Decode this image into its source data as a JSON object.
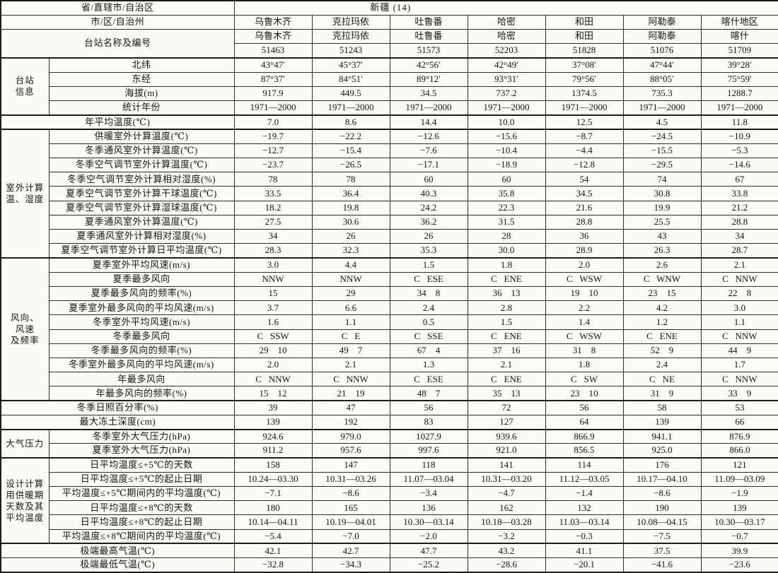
{
  "colors": {
    "paper": "#fbfaf7",
    "ink": "#1b1b18"
  },
  "table": {
    "province_label": "省/直辖市/自治区",
    "province_value": "新疆 (14)",
    "city_label": "市/区/自治州",
    "cities": [
      "乌鲁木齐",
      "克拉玛依",
      "吐鲁番",
      "哈密",
      "和田",
      "阿勒泰",
      "喀什地区"
    ],
    "station_label": "台站名称及编号",
    "station_names": [
      "乌鲁木齐",
      "克拉玛依",
      "吐鲁番",
      "哈密",
      "和田",
      "阿勒泰",
      "喀什"
    ],
    "station_codes": [
      "51463",
      "51243",
      "51573",
      "52203",
      "51828",
      "51076",
      "51709"
    ],
    "sections": [
      {
        "id": "station-info",
        "group_lines": [
          "台站",
          "信息"
        ],
        "rows": [
          {
            "label": "北纬",
            "values": [
              "43°47′",
              "45°37′",
              "42°56′",
              "42°49′",
              "37°08′",
              "47°44′",
              "39°28′"
            ]
          },
          {
            "label": "东经",
            "values": [
              "87°37′",
              "84°51′",
              "89°12′",
              "93°31′",
              "79°56′",
              "88°05′",
              "75°59′"
            ]
          },
          {
            "label": "海拔(m)",
            "values": [
              "917.9",
              "449.5",
              "34.5",
              "737.2",
              "1374.5",
              "735.3",
              "1288.7"
            ]
          },
          {
            "label": "统计年份",
            "values": [
              "1971—2000",
              "1971—2000",
              "1971—2000",
              "1971—2000",
              "1971—2000",
              "1971—2000",
              "1971—2000"
            ]
          }
        ]
      },
      {
        "id": "annual-mean",
        "group_lines": null,
        "rows": [
          {
            "label": "年平均温度(℃)",
            "values": [
              "7.0",
              "8.6",
              "14.4",
              "10.0",
              "12.5",
              "4.5",
              "11.8"
            ]
          }
        ]
      },
      {
        "id": "outdoor-design",
        "group_lines": [
          "室外计算",
          "温、湿度"
        ],
        "rows": [
          {
            "label": "供暖室外计算温度(℃)",
            "values": [
              "−19.7",
              "−22.2",
              "−12.6",
              "−15.6",
              "−8.7",
              "−24.5",
              "−10.9"
            ]
          },
          {
            "label": "冬季通风室外计算温度(℃)",
            "values": [
              "−12.7",
              "−15.4",
              "−7.6",
              "−10.4",
              "−4.4",
              "−15.5",
              "−5.3"
            ]
          },
          {
            "label": "冬季空气调节室外计算温度(℃)",
            "values": [
              "−23.7",
              "−26.5",
              "−17.1",
              "−18.9",
              "−12.8",
              "−29.5",
              "−14.6"
            ]
          },
          {
            "label": "冬季空气调节室外计算相对湿度(%)",
            "values": [
              "78",
              "78",
              "60",
              "60",
              "54",
              "74",
              "67"
            ]
          },
          {
            "label": "夏季空气调节室外计算干球温度(℃)",
            "values": [
              "33.5",
              "36.4",
              "40.3",
              "35.8",
              "34.5",
              "30.8",
              "33.8"
            ]
          },
          {
            "label": "夏季空气调节室外计算湿球温度(℃)",
            "values": [
              "18.2",
              "19.8",
              "24.2",
              "22.3",
              "21.6",
              "19.9",
              "21.2"
            ]
          },
          {
            "label": "夏季通风室外计算温度(℃)",
            "values": [
              "27.5",
              "30.6",
              "36.2",
              "31.5",
              "28.8",
              "25.5",
              "28.8"
            ]
          },
          {
            "label": "夏季通风室外计算相对湿度(%)",
            "values": [
              "34",
              "26",
              "26",
              "28",
              "36",
              "43",
              "34"
            ]
          },
          {
            "label": "夏季空气调节室外计算日平均温度(℃)",
            "values": [
              "28.3",
              "32.3",
              "35.3",
              "30.0",
              "28.9",
              "26.3",
              "28.7"
            ]
          }
        ]
      },
      {
        "id": "wind",
        "group_lines": [
          "风向、",
          "风速",
          "及频率"
        ],
        "rows": [
          {
            "label": "夏季室外平均风速(m/s)",
            "values": [
              "3.0",
              "4.4",
              "1.5",
              "1.8",
              "2.0",
              "2.6",
              "2.1"
            ]
          },
          {
            "label": "夏季最多风向",
            "values": [
              "NNW",
              "NNW",
              "C   ESE",
              "C   ENE",
              "C   WSW",
              "C   WNW",
              "C   NNW"
            ]
          },
          {
            "label": "夏季最多风向的频率(%)",
            "values": [
              "15",
              "29",
              "34    8",
              "36    13",
              "19    10",
              "23    15",
              "22    8"
            ]
          },
          {
            "label": "夏季室外最多风向的平均风速(m/s)",
            "values": [
              "3.7",
              "6.6",
              "2.4",
              "2.8",
              "2.2",
              "4.2",
              "3.0"
            ]
          },
          {
            "label": "冬季室外平均风速(m/s)",
            "values": [
              "1.6",
              "1.1",
              "0.5",
              "1.5",
              "1.4",
              "1.2",
              "1.1"
            ]
          },
          {
            "label": "冬季最多风向",
            "values": [
              "C   SSW",
              "C   E",
              "C   SSE",
              "C   ENE",
              "C   WSW",
              "C   ENE",
              "C   NNW"
            ]
          },
          {
            "label": "冬季最多风向的频率(%)",
            "values": [
              "29    10",
              "49    7",
              "67    4",
              "37    16",
              "31    8",
              "52    9",
              "44    9"
            ]
          },
          {
            "label": "冬季室外最多风向的平均风速(m/s)",
            "values": [
              "2.0",
              "2.1",
              "1.3",
              "2.1",
              "1.8",
              "2.4",
              "1.7"
            ]
          },
          {
            "label": "年最多风向",
            "values": [
              "C   NNW",
              "C   NNW",
              "C   ESE",
              "C   ENE",
              "C   SW",
              "C   NE",
              "C   NNW"
            ]
          },
          {
            "label": "年最多风向的频率(%)",
            "values": [
              "15    12",
              "21    19",
              "48    7",
              "35    13",
              "23    10",
              "31    9",
              "33    9"
            ]
          }
        ]
      },
      {
        "id": "sunshine-frost",
        "group_lines": null,
        "rows": [
          {
            "label": "冬季日照百分率(%)",
            "values": [
              "39",
              "47",
              "56",
              "72",
              "56",
              "58",
              "53"
            ]
          },
          {
            "label": "最大冻土深度(cm)",
            "values": [
              "139",
              "192",
              "83",
              "127",
              "64",
              "139",
              "66"
            ]
          }
        ]
      },
      {
        "id": "pressure",
        "group_lines": [
          "大气压力"
        ],
        "rows": [
          {
            "label": "冬季室外大气压力(hPa)",
            "values": [
              "924.6",
              "979.0",
              "1027.9",
              "939.6",
              "866.9",
              "941.1",
              "876.9"
            ]
          },
          {
            "label": "夏季室外大气压力(hPa)",
            "values": [
              "911.2",
              "957.6",
              "997.6",
              "921.0",
              "856.5",
              "925.0",
              "866.0"
            ]
          }
        ]
      },
      {
        "id": "heating-period",
        "group_lines": [
          "设计计算",
          "用供暖期",
          "天数及其",
          "平均温度"
        ],
        "rows": [
          {
            "label": "日平均温度≤+5℃的天数",
            "values": [
              "158",
              "147",
              "118",
              "141",
              "114",
              "176",
              "121"
            ]
          },
          {
            "label": "日平均温度≤+5℃的起止日期",
            "values": [
              "10.24—03.30",
              "10.31—03.26",
              "11.07—03.04",
              "10.31—03.20",
              "11.12—03.05",
              "10.17—04.10",
              "11.09—03.09"
            ]
          },
          {
            "label": "平均温度≤+5℃期间内的平均温度(℃)",
            "values": [
              "−7.1",
              "−8.6",
              "−3.4",
              "−4.7",
              "−1.4",
              "−8.6",
              "−1.9"
            ]
          },
          {
            "label": "日平均温度≤+8℃的天数",
            "values": [
              "180",
              "165",
              "136",
              "162",
              "132",
              "190",
              "139"
            ]
          },
          {
            "label": "日平均温度≤+8℃的起止日期",
            "values": [
              "10.14—04.11",
              "10.19—04.01",
              "10.30—03.14",
              "10.18—03.28",
              "11.03—03.14",
              "10.08—04.15",
              "10.30—03.17"
            ]
          },
          {
            "label": "平均温度≤+8℃期间内的平均温度(℃)",
            "values": [
              "−5.4",
              "−7.0",
              "−2.0",
              "−3.2",
              "−0.3",
              "−7.5",
              "−0.7"
            ]
          }
        ]
      },
      {
        "id": "extremes",
        "group_lines": null,
        "rows": [
          {
            "label": "极端最高气温(℃)",
            "values": [
              "42.1",
              "42.7",
              "47.7",
              "43.2",
              "41.1",
              "37.5",
              "39.9"
            ]
          },
          {
            "label": "极端最低气温(℃)",
            "values": [
              "−32.8",
              "−34.3",
              "−25.2",
              "−28.6",
              "−20.1",
              "−41.6",
              "−23.6"
            ]
          }
        ]
      }
    ]
  }
}
